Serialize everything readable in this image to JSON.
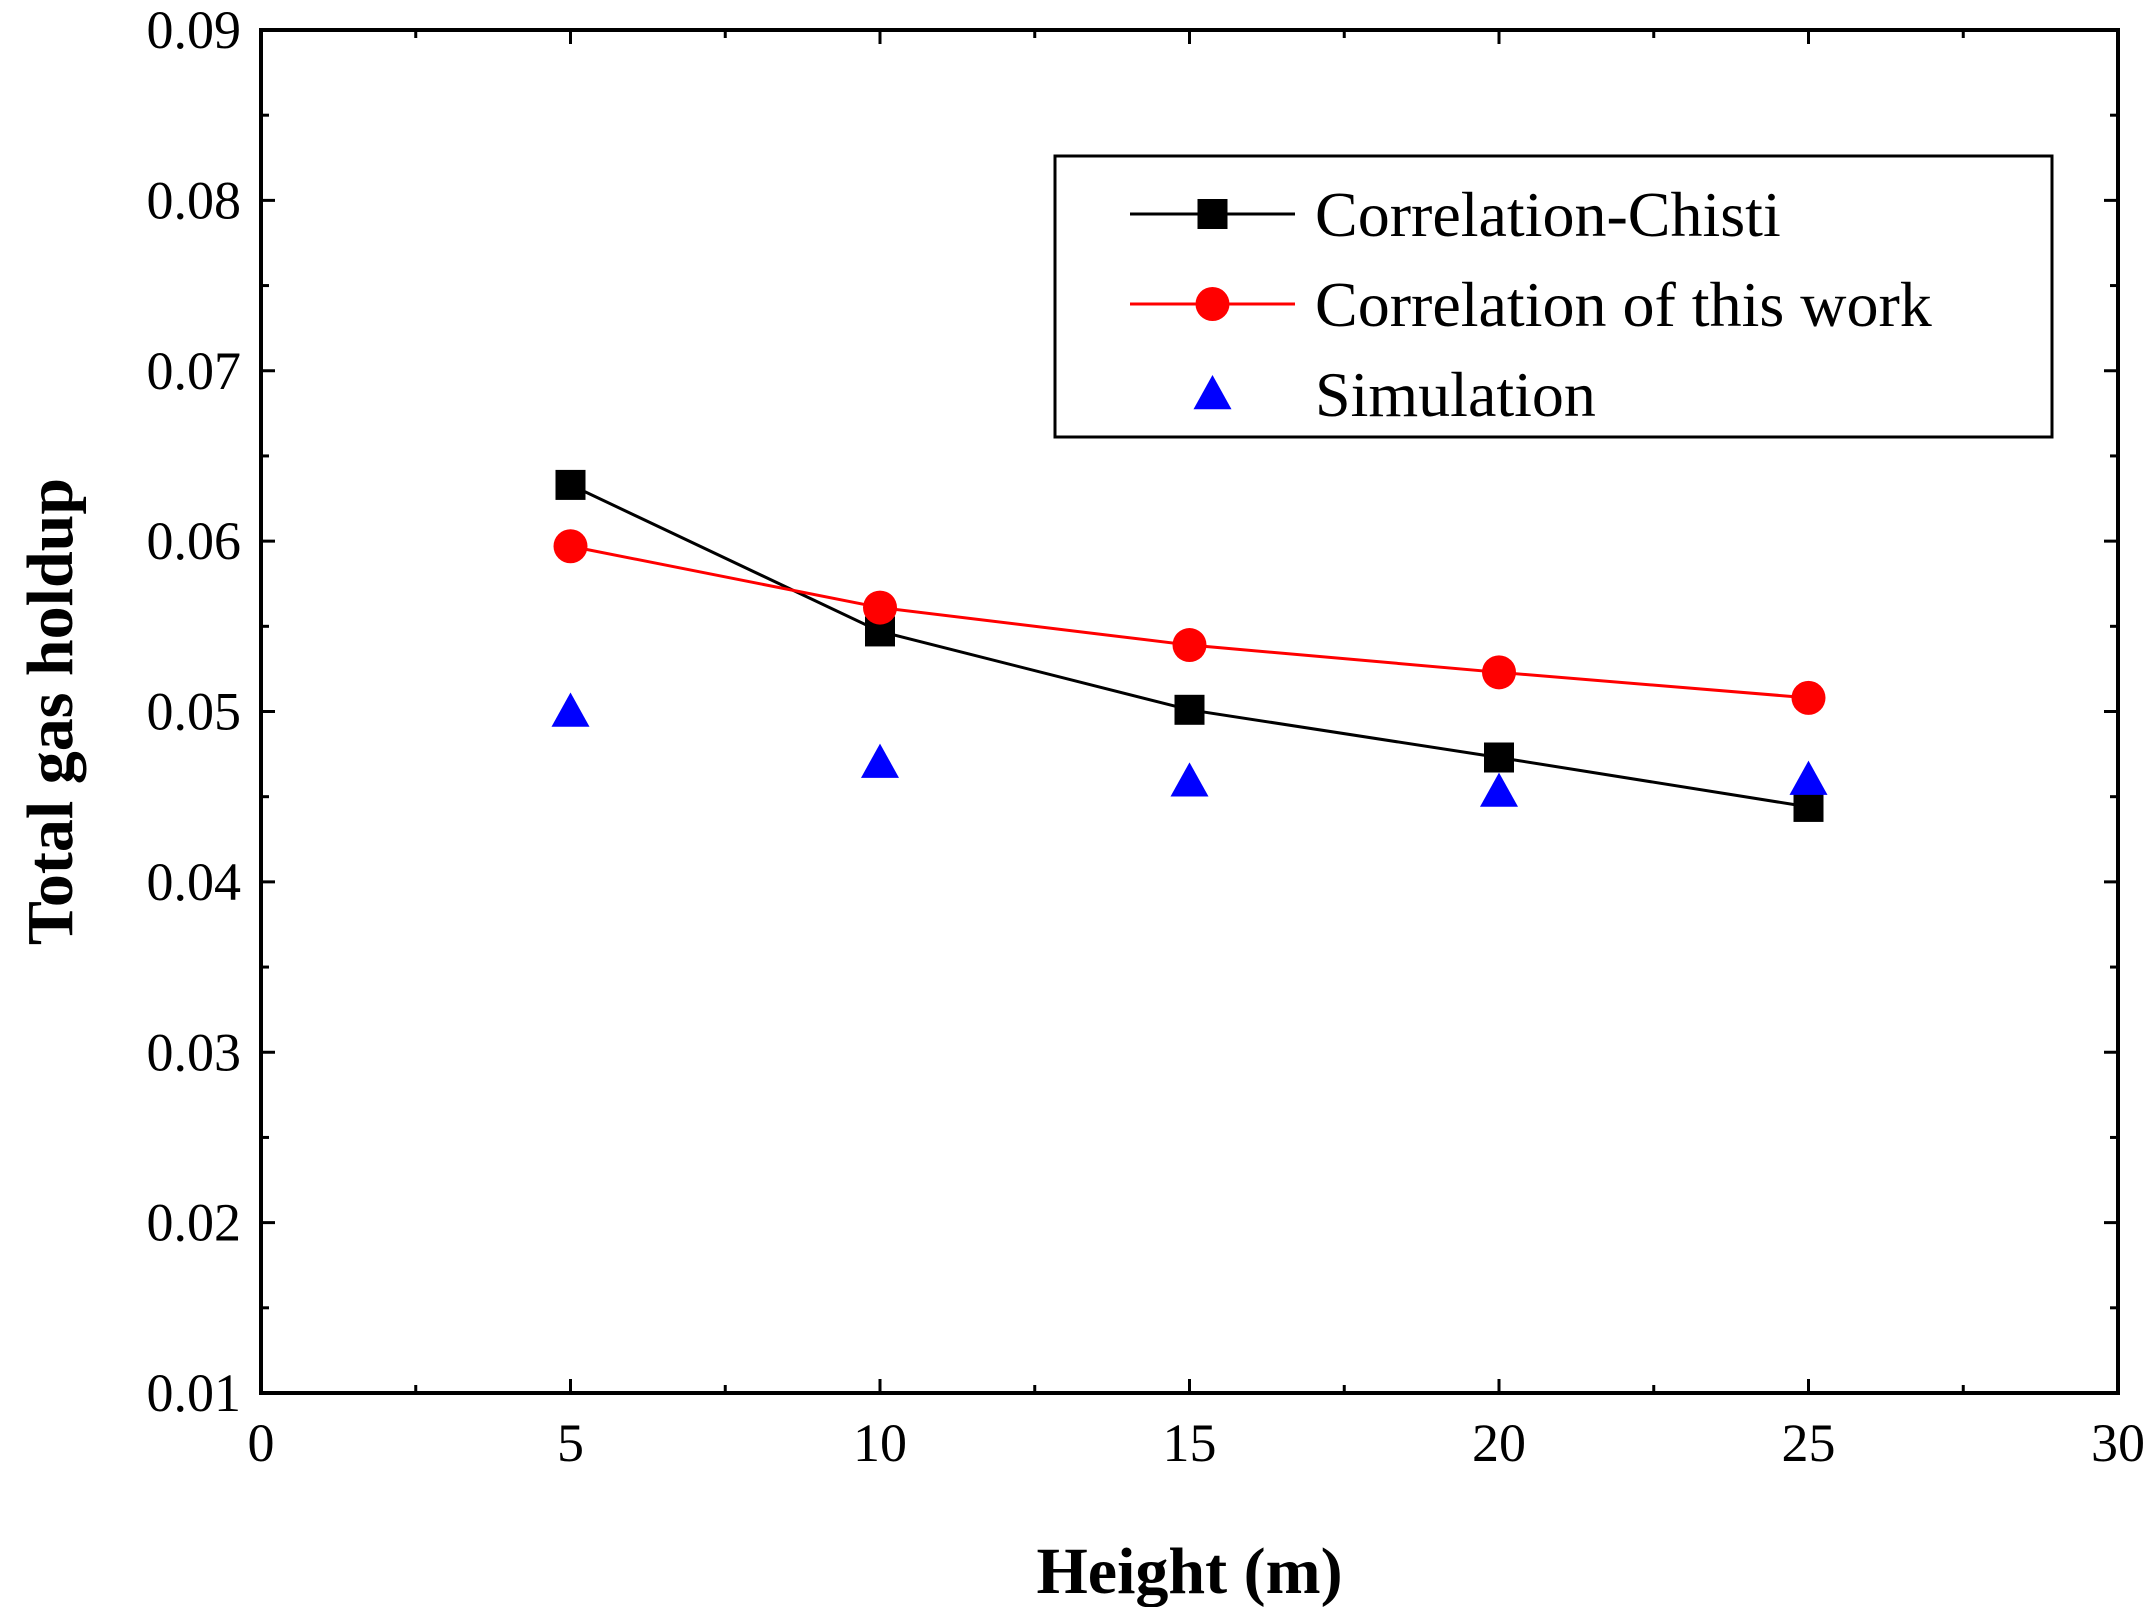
{
  "chart_data": {
    "type": "line",
    "title": "",
    "xlabel": "Height (m)",
    "ylabel": "Total gas holdup",
    "xlim": [
      0,
      30
    ],
    "ylim": [
      0.01,
      0.09
    ],
    "x_ticks": [
      "0",
      "5",
      "10",
      "15",
      "20",
      "25",
      "30"
    ],
    "y_ticks": [
      "0.01",
      "0.02",
      "0.03",
      "0.04",
      "0.05",
      "0.06",
      "0.07",
      "0.08",
      "0.09"
    ],
    "grid": false,
    "legend_position": "top-right",
    "series": [
      {
        "name": "Correlation-Chisti",
        "marker": "square",
        "line": true,
        "color": "#000000",
        "x": [
          5,
          10,
          15,
          20,
          25
        ],
        "values": [
          0.0633,
          0.0547,
          0.0501,
          0.0473,
          0.0444
        ]
      },
      {
        "name": "Correlation of this work",
        "marker": "circle",
        "line": true,
        "color": "#ff0000",
        "x": [
          5,
          10,
          15,
          20,
          25
        ],
        "values": [
          0.0597,
          0.0561,
          0.0539,
          0.0523,
          0.0508
        ]
      },
      {
        "name": "Simulation",
        "marker": "triangle",
        "line": false,
        "color": "#0000ff",
        "x": [
          5,
          10,
          15,
          20,
          25
        ],
        "values": [
          0.05,
          0.047,
          0.0459,
          0.0453,
          0.046
        ]
      }
    ]
  }
}
